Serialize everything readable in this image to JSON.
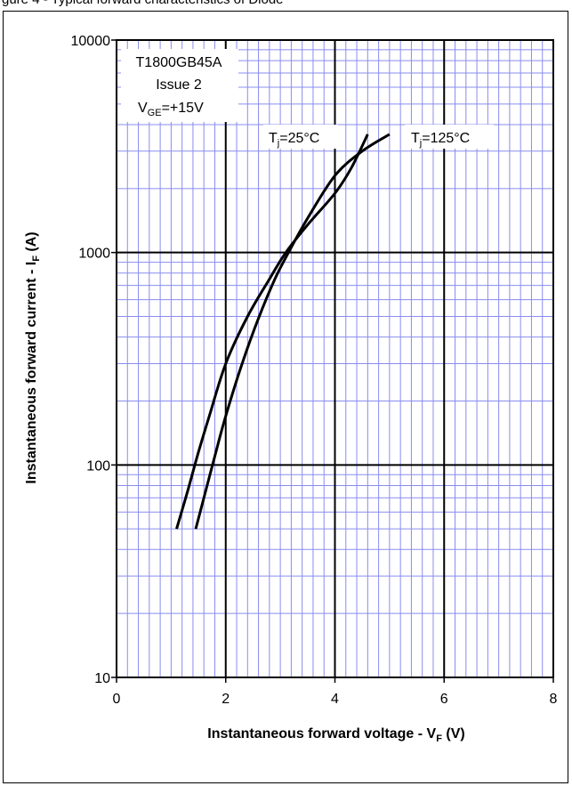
{
  "caption": "gure 4 - Typical forward characteristics of Diode",
  "chart_data": {
    "type": "line",
    "xlabel": "Instantaneous forward voltage - V",
    "xlabel_sub": "F",
    "xlabel_unit": " (V)",
    "ylabel": "Instantaneous forward current - I",
    "ylabel_sub": "F",
    "ylabel_unit": " (A)",
    "xlim": [
      0,
      8
    ],
    "ylim": [
      10,
      10000
    ],
    "yscale": "log",
    "xticks": [
      "0",
      "2",
      "4",
      "6",
      "8"
    ],
    "yticks": [
      "10",
      "100",
      "1000",
      "10000"
    ],
    "grid": true,
    "info_box": {
      "part": "T1800GB45A",
      "issue": "Issue 2",
      "vge_main": "V",
      "vge_sub": "GE",
      "vge_value": "=+15V"
    },
    "series": [
      {
        "name": "Tj=25°C",
        "label_main": "T",
        "label_sub": "j",
        "label_rest": "=25°C",
        "x": [
          1.1,
          1.3,
          1.5,
          1.7,
          2.0,
          2.4,
          2.8,
          3.1,
          3.5,
          4.0,
          4.3,
          4.6
        ],
        "y": [
          50,
          75,
          115,
          170,
          300,
          500,
          750,
          1000,
          1350,
          1900,
          2500,
          3600
        ]
      },
      {
        "name": "Tj=125°C",
        "label_main": "T",
        "label_sub": "j",
        "label_rest": "=125°C",
        "x": [
          1.45,
          1.6,
          1.8,
          2.0,
          2.3,
          2.6,
          2.9,
          3.15,
          3.5,
          4.0,
          4.5,
          5.0
        ],
        "y": [
          50,
          70,
          110,
          170,
          300,
          490,
          750,
          1000,
          1450,
          2300,
          3000,
          3600
        ]
      }
    ]
  }
}
